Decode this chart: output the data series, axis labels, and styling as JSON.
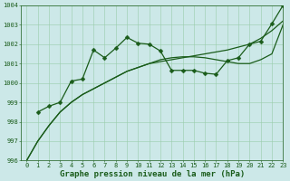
{
  "line1_x": [
    0,
    1,
    2,
    3,
    4,
    5,
    6,
    7,
    8,
    9,
    10,
    11,
    12,
    13,
    14,
    15,
    16,
    17,
    18,
    19,
    20,
    21,
    22,
    23
  ],
  "line1_y": [
    996.0,
    997.0,
    997.8,
    998.5,
    999.0,
    999.4,
    999.7,
    1000.0,
    1000.3,
    1000.6,
    1000.8,
    1001.0,
    1001.1,
    1001.2,
    1001.3,
    1001.4,
    1001.5,
    1001.6,
    1001.7,
    1001.85,
    1002.0,
    1002.3,
    1002.7,
    1003.2
  ],
  "line2_x": [
    0,
    1,
    2,
    3,
    4,
    5,
    6,
    7,
    8,
    9,
    10,
    11,
    12,
    13,
    14,
    15,
    16,
    17,
    18,
    19,
    20,
    21,
    22,
    23
  ],
  "line2_y": [
    996.0,
    997.0,
    997.8,
    998.5,
    999.0,
    999.4,
    999.7,
    1000.0,
    1000.3,
    1000.6,
    1000.8,
    1001.0,
    1001.2,
    1001.3,
    1001.35,
    1001.35,
    1001.3,
    1001.2,
    1001.1,
    1001.0,
    1001.0,
    1001.2,
    1001.5,
    1003.0
  ],
  "line3_x": [
    1,
    2,
    3,
    4,
    5,
    6,
    7,
    8,
    9,
    10,
    11,
    12,
    13,
    14,
    15,
    16,
    17,
    18,
    19,
    20,
    21,
    22,
    23
  ],
  "line3_y": [
    998.5,
    998.8,
    999.0,
    1000.1,
    1000.2,
    1001.7,
    1001.3,
    1001.8,
    1002.35,
    1002.05,
    1002.0,
    1001.65,
    1000.65,
    1000.65,
    1000.65,
    1000.5,
    1000.45,
    1001.15,
    1001.3,
    1002.0,
    1002.15,
    1003.05,
    1004.0
  ],
  "bg_color": "#cce8e8",
  "line_color": "#1a5c1a",
  "grid_color": "#99ccaa",
  "xlabel": "Graphe pression niveau de la mer (hPa)",
  "xlim": [
    -0.5,
    23
  ],
  "ylim": [
    996,
    1004
  ],
  "yticks": [
    996,
    997,
    998,
    999,
    1000,
    1001,
    1002,
    1003,
    1004
  ],
  "xticks": [
    0,
    1,
    2,
    3,
    4,
    5,
    6,
    7,
    8,
    9,
    10,
    11,
    12,
    13,
    14,
    15,
    16,
    17,
    18,
    19,
    20,
    21,
    22,
    23
  ],
  "tick_fontsize": 5,
  "xlabel_fontsize": 6.5,
  "marker_size": 2.5,
  "line_width": 0.9
}
